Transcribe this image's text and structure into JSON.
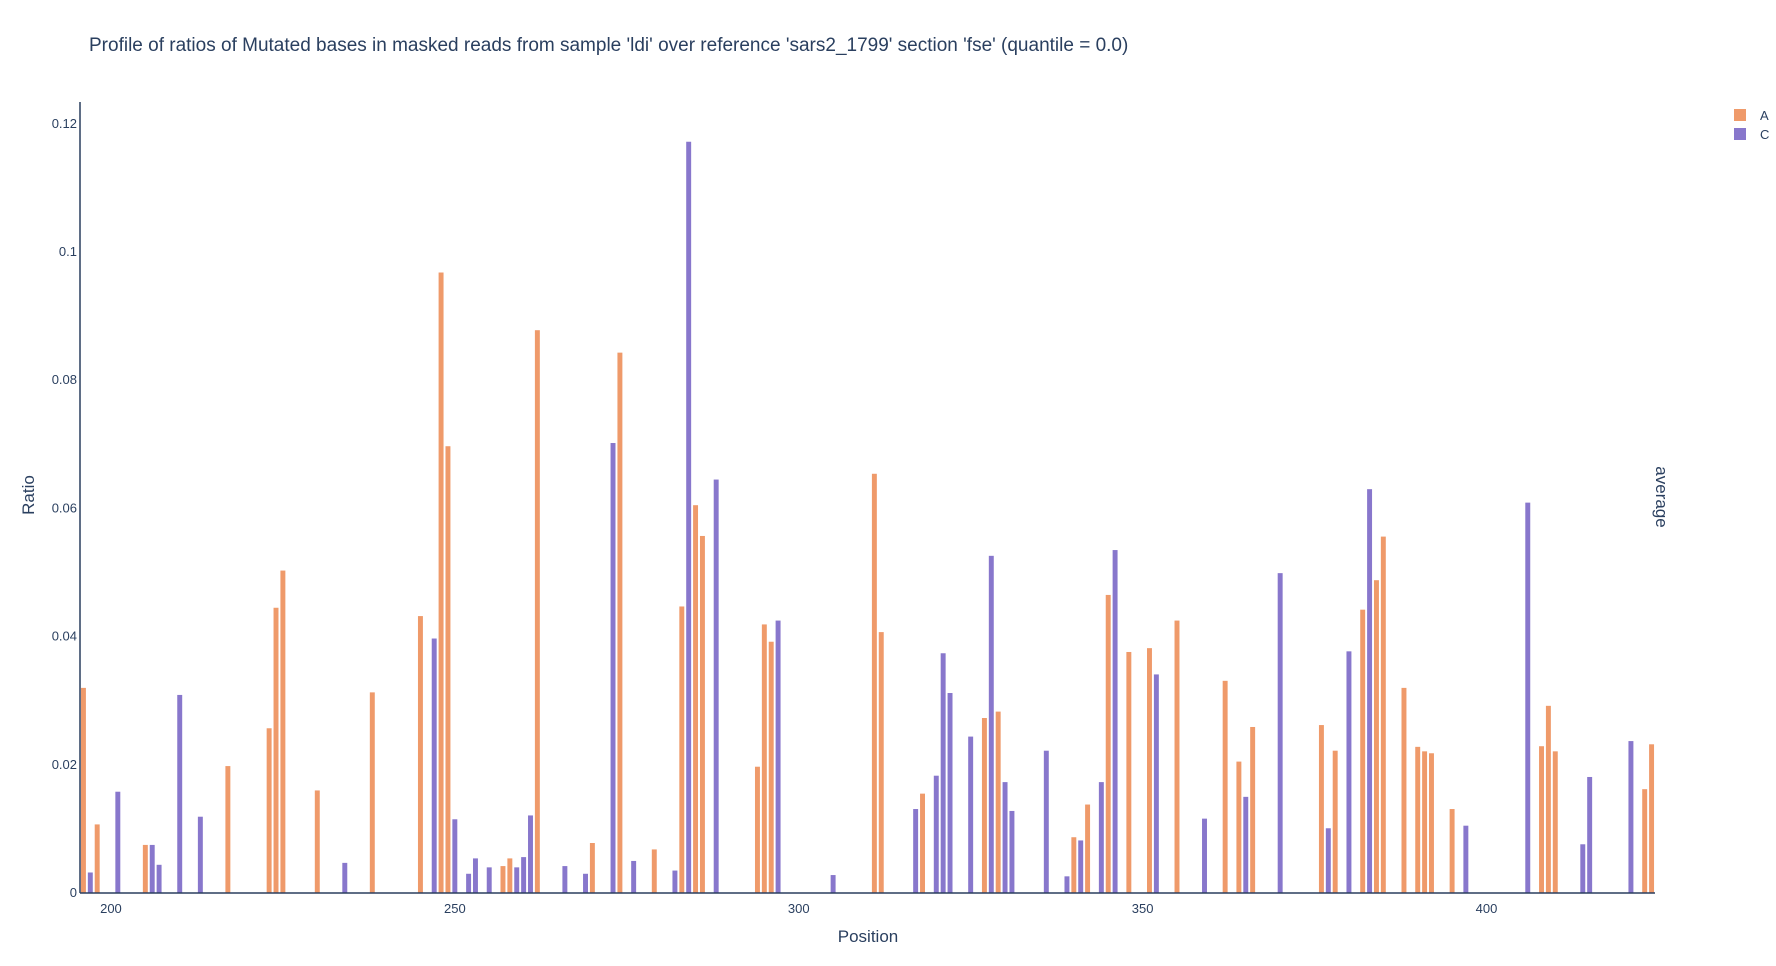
{
  "chart_data": {
    "type": "bar",
    "title": "Profile of ratios of Mutated bases in masked reads from sample 'ldi' over reference 'sars2_1799' section 'fse' (quantile = 0.0)",
    "xlabel": "Position",
    "ylabel": "Ratio",
    "side_label": "average",
    "xlim": [
      195.5,
      424.5
    ],
    "ylim": [
      0,
      0.1234
    ],
    "x_ticks": [
      200,
      250,
      300,
      350,
      400
    ],
    "y_ticks": [
      0,
      0.02,
      0.04,
      0.06,
      0.08,
      0.1,
      0.12
    ],
    "y_tick_labels": [
      "0",
      "0.02",
      "0.04",
      "0.06",
      "0.08",
      "0.1",
      "0.12"
    ],
    "legend": {
      "position": "top-right"
    },
    "colors": {
      "A": "#ef9a6a",
      "C": "#8877cc"
    },
    "series": [
      {
        "name": "A",
        "points": [
          [
            196,
            0.032
          ],
          [
            198,
            0.0107
          ],
          [
            205,
            0.0075
          ],
          [
            217,
            0.0198
          ],
          [
            223,
            0.0257
          ],
          [
            224,
            0.0445
          ],
          [
            225,
            0.0503
          ],
          [
            230,
            0.016
          ],
          [
            238,
            0.0313
          ],
          [
            245,
            0.0432
          ],
          [
            248,
            0.0968
          ],
          [
            249,
            0.0697
          ],
          [
            257,
            0.0042
          ],
          [
            258,
            0.0054
          ],
          [
            262,
            0.0878
          ],
          [
            270,
            0.0078
          ],
          [
            274,
            0.0843
          ],
          [
            279,
            0.0068
          ],
          [
            283,
            0.0447
          ],
          [
            285,
            0.0605
          ],
          [
            286,
            0.0557
          ],
          [
            294,
            0.0197
          ],
          [
            295,
            0.0419
          ],
          [
            296,
            0.0392
          ],
          [
            311,
            0.0654
          ],
          [
            312,
            0.0407
          ],
          [
            318,
            0.0155
          ],
          [
            327,
            0.0273
          ],
          [
            329,
            0.0283
          ],
          [
            340,
            0.0087
          ],
          [
            342,
            0.0138
          ],
          [
            345,
            0.0465
          ],
          [
            348,
            0.0376
          ],
          [
            351,
            0.0382
          ],
          [
            355,
            0.0425
          ],
          [
            362,
            0.0331
          ],
          [
            364,
            0.0205
          ],
          [
            366,
            0.0259
          ],
          [
            376,
            0.0262
          ],
          [
            378,
            0.0222
          ],
          [
            382,
            0.0442
          ],
          [
            384,
            0.0488
          ],
          [
            385,
            0.0556
          ],
          [
            388,
            0.032
          ],
          [
            390,
            0.0228
          ],
          [
            391,
            0.0221
          ],
          [
            392,
            0.0218
          ],
          [
            395,
            0.0131
          ],
          [
            408,
            0.0229
          ],
          [
            409,
            0.0292
          ],
          [
            410,
            0.0221
          ],
          [
            423,
            0.0162
          ],
          [
            424,
            0.0232
          ]
        ]
      },
      {
        "name": "C",
        "points": [
          [
            197,
            0.0032
          ],
          [
            201,
            0.0158
          ],
          [
            206,
            0.0075
          ],
          [
            207,
            0.0044
          ],
          [
            210,
            0.0309
          ],
          [
            213,
            0.0119
          ],
          [
            234,
            0.0047
          ],
          [
            247,
            0.0397
          ],
          [
            250,
            0.0115
          ],
          [
            252,
            0.003
          ],
          [
            253,
            0.0054
          ],
          [
            255,
            0.004
          ],
          [
            259,
            0.004
          ],
          [
            260,
            0.0056
          ],
          [
            261,
            0.0121
          ],
          [
            266,
            0.0042
          ],
          [
            269,
            0.003
          ],
          [
            273,
            0.0702
          ],
          [
            276,
            0.005
          ],
          [
            282,
            0.0035
          ],
          [
            284,
            0.1172
          ],
          [
            288,
            0.0645
          ],
          [
            297,
            0.0425
          ],
          [
            305,
            0.0028
          ],
          [
            317,
            0.0131
          ],
          [
            320,
            0.0183
          ],
          [
            321,
            0.0374
          ],
          [
            322,
            0.0312
          ],
          [
            325,
            0.0244
          ],
          [
            328,
            0.0526
          ],
          [
            330,
            0.0173
          ],
          [
            331,
            0.0128
          ],
          [
            336,
            0.0222
          ],
          [
            339,
            0.0026
          ],
          [
            341,
            0.0082
          ],
          [
            344,
            0.0173
          ],
          [
            346,
            0.0535
          ],
          [
            352,
            0.0341
          ],
          [
            359,
            0.0116
          ],
          [
            365,
            0.015
          ],
          [
            370,
            0.0499
          ],
          [
            377,
            0.0101
          ],
          [
            380,
            0.0377
          ],
          [
            383,
            0.063
          ],
          [
            397,
            0.0105
          ],
          [
            406,
            0.0609
          ],
          [
            414,
            0.0076
          ],
          [
            415,
            0.0181
          ],
          [
            421,
            0.0237
          ]
        ]
      }
    ]
  }
}
